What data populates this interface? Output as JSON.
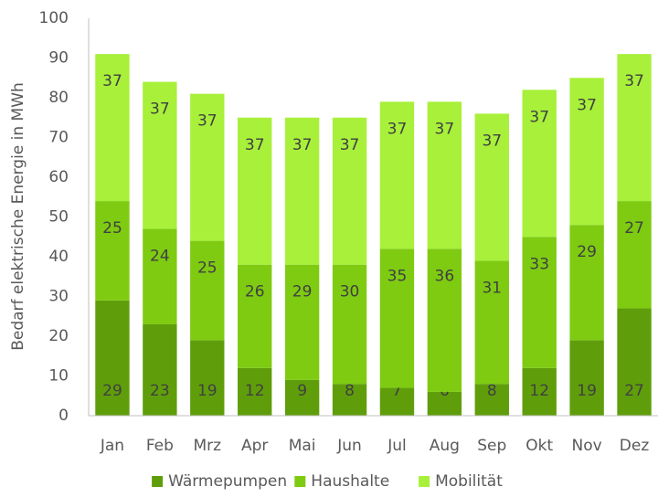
{
  "chart_data": {
    "type": "stacked_bar",
    "y_label": "Bedarf elektrische Energie in MWh",
    "categories": [
      "Jan",
      "Feb",
      "Mrz",
      "Apr",
      "Mai",
      "Jun",
      "Jul",
      "Aug",
      "Sep",
      "Okt",
      "Nov",
      "Dez"
    ],
    "series": [
      {
        "name": "Wärmepumpen",
        "color": "#5f9e0a",
        "values": [
          29,
          23,
          19,
          12,
          9,
          8,
          7,
          6,
          8,
          12,
          19,
          27
        ]
      },
      {
        "name": "Haushalte",
        "color": "#7ecb12",
        "values": [
          25,
          24,
          25,
          26,
          29,
          30,
          35,
          36,
          31,
          33,
          29,
          27
        ]
      },
      {
        "name": "Mobilität",
        "color": "#a8f03a",
        "values": [
          37,
          37,
          37,
          37,
          37,
          37,
          37,
          37,
          37,
          37,
          37,
          37
        ]
      }
    ],
    "ylim": [
      0,
      100
    ],
    "yticks": [
      0,
      10,
      20,
      30,
      40,
      50,
      60,
      70,
      80,
      90,
      100
    ],
    "grid": false,
    "legend": "bottom"
  }
}
